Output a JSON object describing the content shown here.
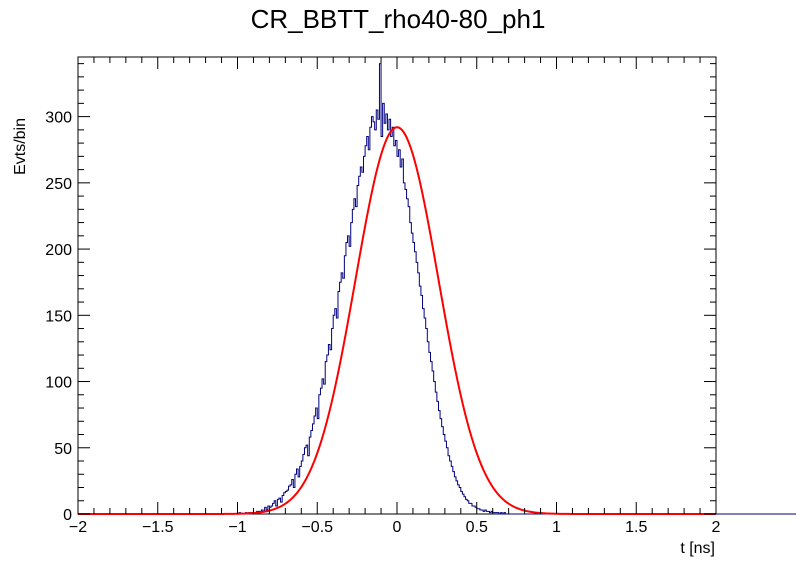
{
  "chart_data": {
    "type": "histogram",
    "title": "CR_BBTT_rho40-80_ph1",
    "xlabel": "t [ns]",
    "ylabel": "Evts/bin",
    "xlim": [
      -2,
      2
    ],
    "ylim": [
      0,
      345
    ],
    "x_ticks": [
      "−2",
      "−1.5",
      "−1",
      "−0.5",
      "0",
      "0.5",
      "1",
      "1.5",
      "2"
    ],
    "y_ticks": [
      "0",
      "50",
      "100",
      "150",
      "200",
      "250",
      "300"
    ],
    "grid": false,
    "legend": "none",
    "series": [
      {
        "style": "step",
        "color": "#00007f",
        "bin_range": [
          -2,
          2
        ],
        "bin_width": 0.01,
        "bin_values": [
          0,
          0,
          0,
          0,
          0,
          0,
          0,
          0,
          0,
          0,
          0,
          0,
          0,
          0,
          0,
          0,
          0,
          0,
          0,
          0,
          0,
          0,
          0,
          0,
          0,
          0,
          0,
          0,
          0,
          0,
          0,
          0,
          0,
          0,
          0,
          0,
          0,
          0,
          0,
          0,
          0,
          0,
          0,
          0,
          0,
          0,
          0,
          0,
          0,
          0,
          0,
          0,
          0,
          0,
          0,
          0,
          0,
          0,
          0,
          0,
          0,
          0,
          0,
          0,
          0,
          0,
          0,
          0,
          0,
          0,
          0,
          0,
          0,
          0,
          0,
          0,
          0,
          0,
          0,
          0,
          0,
          0,
          0,
          0,
          0,
          0,
          0,
          0,
          0,
          0,
          0,
          0,
          0,
          0,
          0,
          0,
          0,
          0,
          0,
          0,
          0,
          1,
          0,
          0,
          0,
          1,
          0,
          1,
          1,
          1,
          1,
          1,
          2,
          2,
          2,
          3,
          2,
          5,
          3,
          6,
          5,
          6,
          8,
          10,
          6,
          11,
          12,
          9,
          14,
          16,
          17,
          18,
          21,
          22,
          26,
          20,
          30,
          34,
          28,
          36,
          40,
          45,
          50,
          52,
          44,
          58,
          63,
          68,
          74,
          80,
          72,
          90,
          95,
          102,
          98,
          115,
          120,
          128,
          124,
          140,
          150,
          155,
          148,
          168,
          175,
          182,
          178,
          195,
          205,
          210,
          202,
          220,
          230,
          238,
          232,
          248,
          255,
          262,
          258,
          270,
          278,
          285,
          275,
          292,
          300,
          296,
          290,
          305,
          298,
          340,
          285,
          310,
          295,
          302,
          290,
          298,
          285,
          292,
          278,
          282,
          270,
          275,
          262,
          268,
          250,
          245,
          238,
          232,
          220,
          212,
          205,
          198,
          190,
          182,
          172,
          165,
          155,
          148,
          140,
          130,
          122,
          115,
          108,
          100,
          92,
          85,
          78,
          72,
          66,
          60,
          55,
          50,
          44,
          40,
          36,
          32,
          28,
          25,
          22,
          20,
          17,
          15,
          13,
          11,
          10,
          8,
          8,
          6,
          6,
          5,
          4,
          4,
          3,
          3,
          2,
          3,
          2,
          2,
          1,
          2,
          1,
          1,
          1,
          1,
          0,
          1,
          0,
          1,
          0,
          0,
          0,
          0,
          0,
          0,
          0,
          0,
          0,
          0,
          0,
          0,
          0,
          0,
          0,
          0,
          0,
          0,
          0,
          0,
          0,
          0,
          0,
          0,
          0,
          0,
          0,
          0,
          0,
          0,
          0,
          0,
          0,
          0,
          0,
          0,
          0,
          0,
          0,
          0,
          0,
          0,
          0,
          0,
          0,
          0,
          0,
          0,
          0,
          0,
          0,
          0,
          0,
          0,
          0,
          0,
          0,
          0,
          0,
          0,
          0,
          0,
          0,
          0,
          0,
          0,
          0,
          0,
          0,
          0,
          0,
          0,
          0,
          0,
          0,
          0,
          0,
          0,
          0,
          0,
          0,
          0,
          0,
          0,
          0,
          0,
          0,
          0,
          0,
          0,
          0,
          0,
          0,
          0,
          0,
          0,
          0,
          0,
          0,
          0,
          0,
          0,
          0,
          0,
          0,
          0,
          0,
          0,
          0,
          0,
          0,
          0,
          0,
          0,
          0,
          0,
          0,
          0,
          0,
          0,
          0,
          0,
          0,
          0,
          0,
          0,
          0,
          0,
          0,
          0,
          0,
          0,
          0,
          0,
          0,
          0,
          0,
          0,
          0,
          0,
          0,
          0,
          0,
          0,
          0,
          0,
          0,
          0,
          0,
          0,
          0,
          0,
          0,
          0,
          0,
          0,
          0,
          0,
          0,
          0,
          0,
          0,
          0,
          0,
          0,
          0,
          0,
          0,
          0,
          0,
          0,
          0,
          0,
          0,
          0,
          0,
          0,
          0,
          0,
          0,
          0,
          0,
          0,
          0,
          0,
          0,
          0,
          0,
          0,
          0,
          0,
          0,
          0,
          0,
          0,
          0,
          0,
          0,
          0,
          0,
          0,
          0,
          0,
          0,
          0,
          0,
          0,
          0,
          0,
          0,
          0,
          0,
          0,
          0,
          0,
          0,
          0,
          0,
          0
        ]
      },
      {
        "style": "fit-curve",
        "color": "#ff0000",
        "function": "gaussian",
        "amplitude": 292,
        "mean": 0.0,
        "sigma": 0.26
      }
    ]
  }
}
